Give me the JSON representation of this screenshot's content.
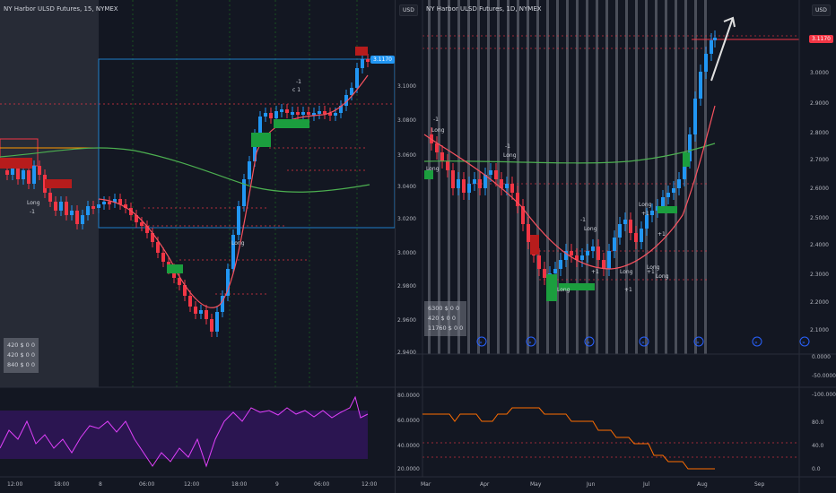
{
  "left_chart": {
    "title": "NY Harbor ULSD Futures, 15, NYMEX",
    "price_tag": "3.1170",
    "price_labels": [
      "3.1200",
      "3.1000",
      "3.0800",
      "3.0600",
      "3.0400",
      "3.0200",
      "3.0000",
      "2.9800",
      "2.9600",
      "2.9400"
    ],
    "time_labels": [
      "12:00",
      "18:00",
      "8",
      "06:00",
      "12:00",
      "18:00",
      "9",
      "06:00",
      "12:00"
    ],
    "stats": [
      "420 $  0  0",
      "420 $  0  0",
      "840 $  0  0"
    ],
    "signals": [
      {
        "text": "Long",
        "name": "signal-long"
      },
      {
        "text": "-1",
        "name": "signal-minus1"
      },
      {
        "text": "Long",
        "name": "signal-long-2"
      },
      {
        "text": "-1",
        "name": "signal-minus1-2"
      },
      {
        "text": "c 1",
        "name": "signal-c1"
      }
    ],
    "rsi_levels": [
      "80.0000",
      "60.0000",
      "40.0000",
      "20.0000"
    ]
  },
  "right_chart": {
    "title": "NY Harbor ULSD Futures, 1D, NYMEX",
    "currency_left": "USD",
    "currency_right": "USD",
    "price_tag": "3.1170",
    "price_labels_right": [
      "3.0000",
      "2.9000",
      "2.8000",
      "2.7000",
      "2.6000",
      "2.5000",
      "2.4000",
      "2.3000",
      "2.2000",
      "2.1000"
    ],
    "price_labels_left": [
      "3.1000",
      "3.0800",
      "3.0600",
      "3.0400",
      "3.0200",
      "3.0000",
      "2.9800",
      "2.9600",
      "2.9400"
    ],
    "time_labels": [
      "Mar",
      "Apr",
      "May",
      "Jun",
      "Jul",
      "Aug",
      "Sep"
    ],
    "stats": [
      "6300 $  0  0",
      "420 $  0  0",
      "11760 $  0  0"
    ],
    "signals": [
      "-1",
      "Long",
      "Long",
      "-1",
      "Long",
      "Long",
      "-1",
      "Long",
      "+1",
      "Long",
      "+1",
      "Long",
      "+1",
      "Long",
      "+1",
      "Long",
      "+1"
    ],
    "lower_right_labels": [
      "0.0000",
      "-50.0000",
      "-100.0000",
      "80.0",
      "40.0",
      "0.0"
    ],
    "lower_left_labels": [
      "80.0000",
      "60.0000",
      "40.0000",
      "20.0000"
    ]
  },
  "colors": {
    "bg": "#131722",
    "up": "#2196f3",
    "down": "#f23645",
    "ma_green": "#4caf50",
    "ma_red": "#f7525f",
    "rsi": "#e040fb",
    "orange": "#ff6d00",
    "vbar": "#787b86"
  }
}
